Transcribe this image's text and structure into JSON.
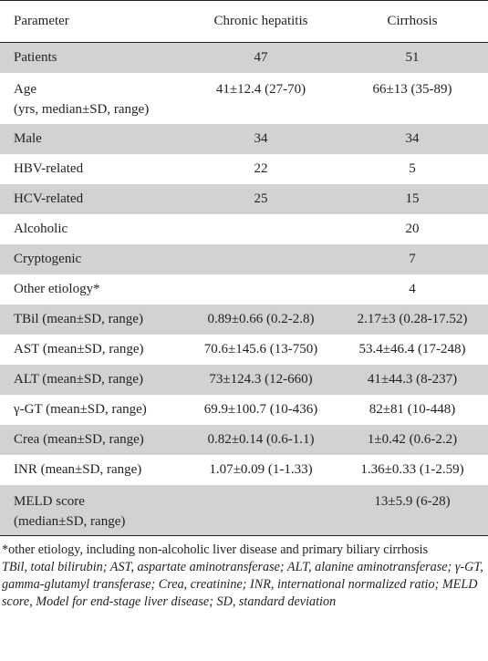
{
  "table": {
    "headers": [
      "Parameter",
      "Chronic hepatitis",
      "Cirrhosis"
    ],
    "rows": [
      {
        "param": "Patients",
        "param2": "",
        "ch": "47",
        "ci": "51"
      },
      {
        "param": "Age",
        "param2": "(yrs, median±SD, range)",
        "ch": "41±12.4 (27-70)",
        "ci": "66±13 (35-89)"
      },
      {
        "param": "Male",
        "param2": "",
        "ch": "34",
        "ci": "34"
      },
      {
        "param": "HBV-related",
        "param2": "",
        "ch": "22",
        "ci": "5"
      },
      {
        "param": "HCV-related",
        "param2": "",
        "ch": "25",
        "ci": "15"
      },
      {
        "param": "Alcoholic",
        "param2": "",
        "ch": "",
        "ci": "20"
      },
      {
        "param": "Cryptogenic",
        "param2": "",
        "ch": "",
        "ci": "7"
      },
      {
        "param": "Other etiology*",
        "param2": "",
        "ch": "",
        "ci": "4"
      },
      {
        "param": "TBil (mean±SD, range)",
        "param2": "",
        "ch": "0.89±0.66 (0.2-2.8)",
        "ci": "2.17±3 (0.28-17.52)"
      },
      {
        "param": "AST (mean±SD, range)",
        "param2": "",
        "ch": "70.6±145.6 (13-750)",
        "ci": "53.4±46.4 (17-248)"
      },
      {
        "param": "ALT (mean±SD, range)",
        "param2": "",
        "ch": "73±124.3 (12-660)",
        "ci": "41±44.3 (8-237)"
      },
      {
        "param": "γ-GT (mean±SD, range)",
        "param2": "",
        "ch": "69.9±100.7 (10-436)",
        "ci": "82±81 (10-448)"
      },
      {
        "param": "Crea (mean±SD, range)",
        "param2": "",
        "ch": "0.82±0.14 (0.6-1.1)",
        "ci": "1±0.42 (0.6-2.2)"
      },
      {
        "param": "INR (mean±SD, range)",
        "param2": "",
        "ch": "1.07±0.09 (1-1.33)",
        "ci": "1.36±0.33 (1-2.59)"
      },
      {
        "param": "MELD score",
        "param2": "(median±SD, range)",
        "ch": "",
        "ci": "13±5.9 (6-28)"
      }
    ]
  },
  "notes": {
    "footnote": "*other etiology, including non-alcoholic liver disease and primary biliary cirrhosis",
    "abbreviations": "TBil, total bilirubin; AST, aspartate aminotransferase; ALT, alanine aminotransferase; γ-GT, gamma-glutamyl transferase; Crea, creatinine; INR, international normalized ratio; MELD score, Model for end-stage liver disease; SD, standard deviation"
  }
}
